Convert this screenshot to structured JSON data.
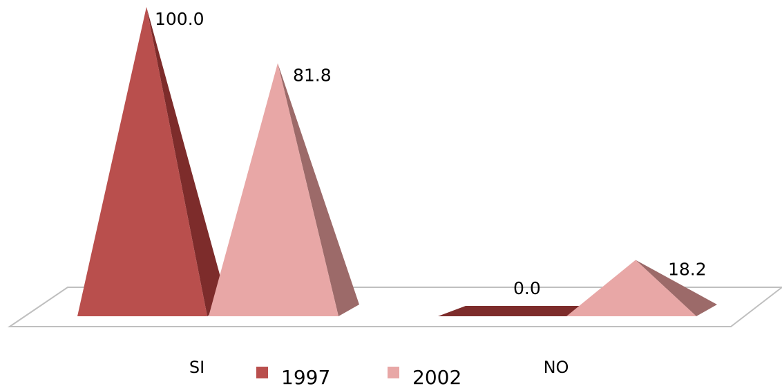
{
  "chart_data": {
    "type": "bar",
    "shape": "pyramid-3d",
    "categories": [
      "SI",
      "NO"
    ],
    "series": [
      {
        "name": "1997",
        "values": [
          100.0,
          0.0
        ],
        "labels": [
          "100.0",
          "0.0"
        ],
        "color": "#b94f4d",
        "side_color": "#7d2c2b"
      },
      {
        "name": "2002",
        "values": [
          81.8,
          18.2
        ],
        "labels": [
          "81.8",
          "18.2"
        ],
        "color": "#e8a7a6",
        "side_color": "#9c6a69"
      }
    ],
    "ylim": [
      0,
      100
    ],
    "grid": false,
    "legend": "bottom-center"
  }
}
